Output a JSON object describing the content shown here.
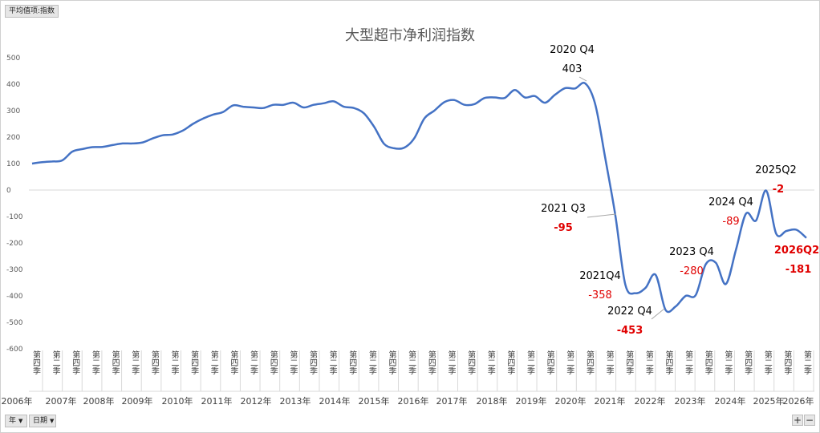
{
  "ui": {
    "field_button": "平均值项:指数",
    "year_button": "年",
    "date_button": "日期",
    "zoom_in": "+",
    "zoom_out": "−"
  },
  "colors": {
    "line": "#4472c4",
    "negative_label": "#e00000",
    "grid": "#d9d9d9",
    "axis_text": "#595959"
  },
  "chart_data": {
    "type": "line",
    "title": "大型超市净利润指数",
    "ylim": [
      -600,
      500
    ],
    "yticks": [
      500,
      400,
      300,
      200,
      100,
      0,
      -100,
      -200,
      -300,
      -400,
      -500,
      -600
    ],
    "grid": "zero-line",
    "legend": "none",
    "quarter_labels": [
      "第四季",
      "第二季"
    ],
    "year_labels": [
      "2006年",
      "2007年",
      "2008年",
      "2009年",
      "2010年",
      "2011年",
      "2012年",
      "2013年",
      "2014年",
      "2015年",
      "2016年",
      "2017年",
      "2018年",
      "2019年",
      "2020年",
      "2021年",
      "2022年",
      "2023年",
      "2024年",
      "2025年",
      "2026年"
    ],
    "series": [
      {
        "values": [
          100,
          105,
          108,
          112,
          145,
          155,
          162,
          163,
          170,
          176,
          176,
          180,
          195,
          207,
          210,
          225,
          250,
          270,
          285,
          295,
          320,
          315,
          312,
          310,
          322,
          322,
          330,
          312,
          322,
          328,
          335,
          315,
          310,
          290,
          240,
          175,
          158,
          160,
          195,
          270,
          300,
          332,
          340,
          322,
          325,
          348,
          350,
          348,
          378,
          350,
          355,
          330,
          360,
          385,
          384,
          403,
          325,
          120,
          -95,
          -358,
          -390,
          -370,
          -320,
          -453,
          -440,
          -400,
          -397,
          -280,
          -275,
          -355,
          -225,
          -89,
          -115,
          -2,
          -165,
          -155,
          -150,
          -181
        ]
      }
    ],
    "annotations": [
      {
        "index": 55,
        "label": "2020 Q4",
        "value": "403",
        "negative": false
      },
      {
        "index": 58,
        "label": "2021 Q3",
        "value": "-95",
        "negative": true,
        "bold": true
      },
      {
        "index": 59,
        "label": "2021Q4",
        "value": "-358",
        "negative": true,
        "bold": false
      },
      {
        "index": 63,
        "label": "2022 Q4",
        "value": "-453",
        "negative": true,
        "bold": true
      },
      {
        "index": 67,
        "label": "2023 Q4",
        "value": "-280",
        "negative": true,
        "bold": false
      },
      {
        "index": 71,
        "label": "2024 Q4",
        "value": "-89",
        "negative": true,
        "bold": false
      },
      {
        "index": 73,
        "label": "2025Q2",
        "value": "-2",
        "negative": true,
        "bold": true
      },
      {
        "index": 77,
        "label": "2026Q2",
        "value": "-181",
        "negative": true,
        "bold": true,
        "label_red": true
      }
    ]
  }
}
